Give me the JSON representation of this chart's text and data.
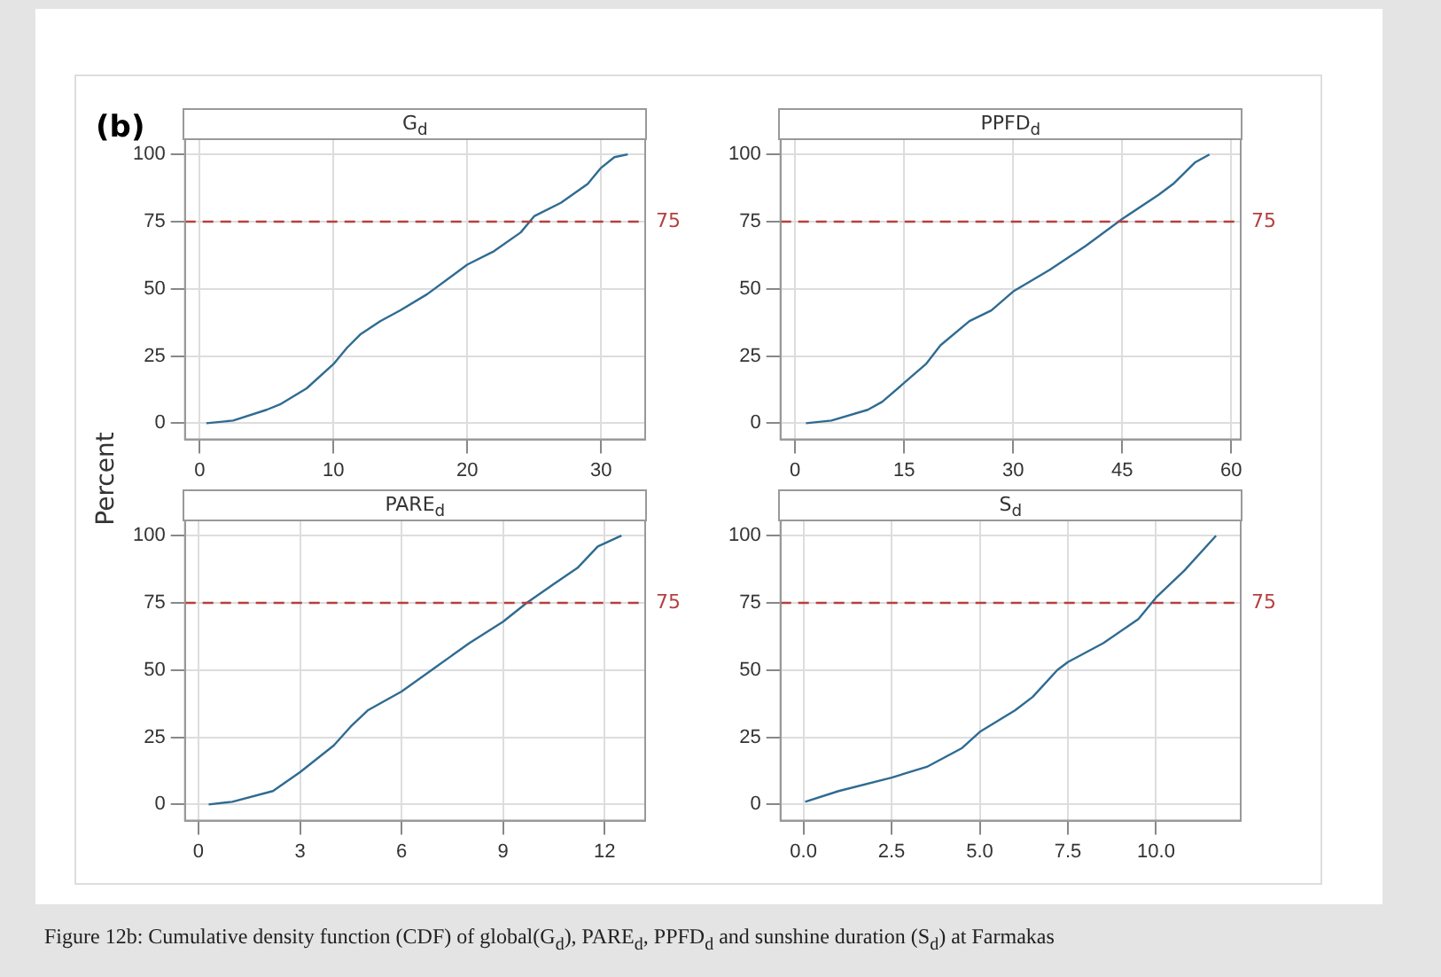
{
  "chart_data": [
    {
      "type": "line",
      "title": "G$_{d}$",
      "ylabel": "Percent",
      "annotations": [
        "(b)"
      ],
      "xlim": [
        -1.1,
        33.3
      ],
      "xticks": [
        0,
        10,
        20,
        30
      ],
      "ylim": [
        -6,
        106
      ],
      "yticks": [
        0,
        25,
        50,
        75,
        100
      ],
      "grid": true,
      "marker": "none",
      "line_style": "solid",
      "ref_lines": [
        {
          "axis": "y",
          "value": 75,
          "label": "75",
          "color": "#b5403f",
          "line_style": "dashed"
        }
      ],
      "series": [
        {
          "color": "#2f6b92",
          "x": [
            0.5,
            2.5,
            5,
            6,
            8,
            10,
            11,
            12,
            13.5,
            15,
            17,
            20,
            22,
            24,
            25,
            27,
            29,
            30,
            31,
            32
          ],
          "values": [
            0,
            1,
            5,
            7,
            13,
            22,
            28,
            33,
            38,
            42,
            48,
            59,
            64,
            71,
            77,
            82,
            89,
            95,
            99,
            100
          ]
        }
      ]
    },
    {
      "type": "line",
      "title": "PPFD$_{d}$",
      "xlim": [
        -2,
        61.3
      ],
      "xticks": [
        0,
        15,
        30,
        45,
        60
      ],
      "ylim": [
        -6,
        106
      ],
      "yticks": [
        0,
        25,
        50,
        75,
        100
      ],
      "grid": true,
      "marker": "none",
      "line_style": "solid",
      "ref_lines": [
        {
          "axis": "y",
          "value": 75,
          "label": "75",
          "color": "#b5403f",
          "line_style": "dashed"
        }
      ],
      "series": [
        {
          "color": "#2f6b92",
          "x": [
            1.5,
            5,
            10,
            12,
            15,
            18,
            20,
            24,
            27,
            30,
            35,
            40,
            45,
            50,
            52,
            55,
            57
          ],
          "values": [
            0,
            1,
            5,
            8,
            15,
            22,
            29,
            38,
            42,
            49,
            57,
            66,
            76,
            85,
            89,
            97,
            100
          ]
        }
      ]
    },
    {
      "type": "line",
      "title": "PARE$_{d}$",
      "xlim": [
        -0.4,
        13.2
      ],
      "xticks": [
        0,
        3,
        6,
        9,
        12
      ],
      "ylim": [
        -6,
        106
      ],
      "yticks": [
        0,
        25,
        50,
        75,
        100
      ],
      "grid": true,
      "marker": "none",
      "line_style": "solid",
      "ref_lines": [
        {
          "axis": "y",
          "value": 75,
          "label": "75",
          "color": "#b5403f",
          "line_style": "dashed"
        }
      ],
      "series": [
        {
          "color": "#2f6b92",
          "x": [
            0.3,
            1,
            2.2,
            3,
            4,
            4.5,
            5,
            6,
            7,
            8,
            9,
            9.7,
            10.5,
            11.2,
            11.8,
            12.5
          ],
          "values": [
            0,
            1,
            5,
            12,
            22,
            29,
            35,
            42,
            51,
            60,
            68,
            75,
            82,
            88,
            96,
            100
          ]
        }
      ]
    },
    {
      "type": "line",
      "title": "S$_{d}$",
      "annotations": [
        "Figure 12b: Cumulative density function (CDF) of global(G$_{d}$), PARE$_{d}$, PPFD$_{d}$ and sunshine duration (S$_{d}$) at Farmakas"
      ],
      "xlim": [
        -0.65,
        12.4
      ],
      "xticks": [
        {
          "value": 0,
          "label": "0.0"
        },
        {
          "value": 2.5,
          "label": "2.5"
        },
        {
          "value": 5,
          "label": "5.0"
        },
        {
          "value": 7.5,
          "label": "7.5"
        },
        {
          "value": 10,
          "label": "10.0"
        }
      ],
      "ylim": [
        -6,
        106
      ],
      "yticks": [
        0,
        25,
        50,
        75,
        100
      ],
      "grid": true,
      "marker": "none",
      "line_style": "solid",
      "ref_lines": [
        {
          "axis": "y",
          "value": 75,
          "label": "75",
          "color": "#b5403f",
          "line_style": "dashed"
        }
      ],
      "series": [
        {
          "color": "#2f6b92",
          "x": [
            0.05,
            1,
            2.5,
            3.5,
            4.5,
            5,
            6,
            6.5,
            7.2,
            7.5,
            8.5,
            9.5,
            10,
            10.8,
            11.7
          ],
          "values": [
            1,
            5,
            10,
            14,
            21,
            27,
            35,
            40,
            50,
            53,
            60,
            69,
            77,
            87,
            100
          ]
        }
      ]
    }
  ]
}
